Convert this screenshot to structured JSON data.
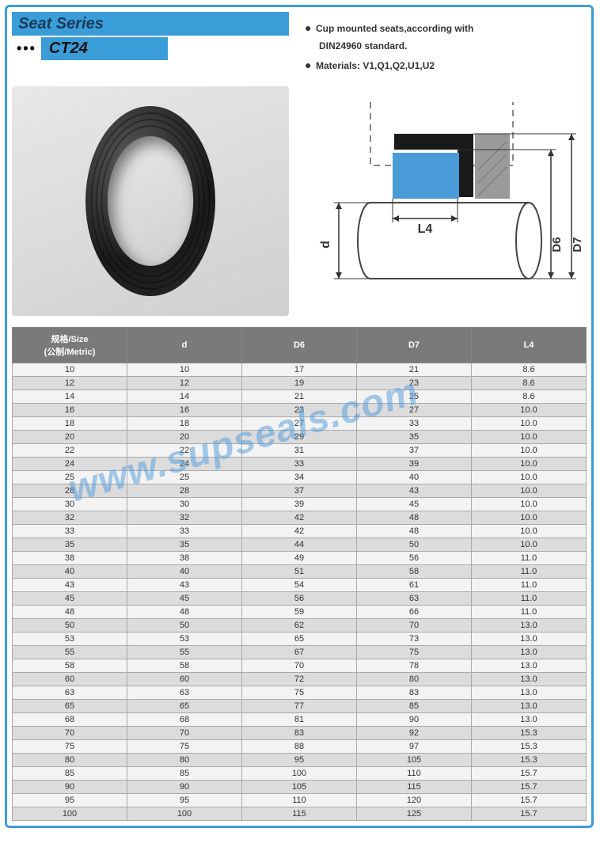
{
  "header": {
    "series_title": "Seat Series",
    "model": "CT24"
  },
  "specs": {
    "bullet1_line1": "Cup mounted seats,according with",
    "bullet1_line2": "DIN24960 standard.",
    "bullet2": "Materials: V1,Q1,Q2,U1,U2"
  },
  "diagram": {
    "L4": "L4",
    "d": "d",
    "D6": "D6",
    "D7": "D7"
  },
  "table": {
    "columns": [
      "规格/Size\n(公制/Metric)",
      "d",
      "D6",
      "D7",
      "L4"
    ],
    "col_headers": {
      "size_line1": "规格/Size",
      "size_line2": "(公制/Metric)",
      "d": "d",
      "D6": "D6",
      "D7": "D7",
      "L4": "L4"
    },
    "rows": [
      [
        "10",
        "10",
        "17",
        "21",
        "8.6"
      ],
      [
        "12",
        "12",
        "19",
        "23",
        "8.6"
      ],
      [
        "14",
        "14",
        "21",
        "25",
        "8.6"
      ],
      [
        "16",
        "16",
        "23",
        "27",
        "10.0"
      ],
      [
        "18",
        "18",
        "27",
        "33",
        "10.0"
      ],
      [
        "20",
        "20",
        "29",
        "35",
        "10.0"
      ],
      [
        "22",
        "22",
        "31",
        "37",
        "10.0"
      ],
      [
        "24",
        "24",
        "33",
        "39",
        "10.0"
      ],
      [
        "25",
        "25",
        "34",
        "40",
        "10.0"
      ],
      [
        "28",
        "28",
        "37",
        "43",
        "10.0"
      ],
      [
        "30",
        "30",
        "39",
        "45",
        "10.0"
      ],
      [
        "32",
        "32",
        "42",
        "48",
        "10.0"
      ],
      [
        "33",
        "33",
        "42",
        "48",
        "10.0"
      ],
      [
        "35",
        "35",
        "44",
        "50",
        "10.0"
      ],
      [
        "38",
        "38",
        "49",
        "56",
        "11.0"
      ],
      [
        "40",
        "40",
        "51",
        "58",
        "11.0"
      ],
      [
        "43",
        "43",
        "54",
        "61",
        "11.0"
      ],
      [
        "45",
        "45",
        "56",
        "63",
        "11.0"
      ],
      [
        "48",
        "48",
        "59",
        "66",
        "11.0"
      ],
      [
        "50",
        "50",
        "62",
        "70",
        "13.0"
      ],
      [
        "53",
        "53",
        "65",
        "73",
        "13.0"
      ],
      [
        "55",
        "55",
        "67",
        "75",
        "13.0"
      ],
      [
        "58",
        "58",
        "70",
        "78",
        "13.0"
      ],
      [
        "60",
        "60",
        "72",
        "80",
        "13.0"
      ],
      [
        "63",
        "63",
        "75",
        "83",
        "13.0"
      ],
      [
        "65",
        "65",
        "77",
        "85",
        "13.0"
      ],
      [
        "68",
        "68",
        "81",
        "90",
        "13.0"
      ],
      [
        "70",
        "70",
        "83",
        "92",
        "15.3"
      ],
      [
        "75",
        "75",
        "88",
        "97",
        "15.3"
      ],
      [
        "80",
        "80",
        "95",
        "105",
        "15.3"
      ],
      [
        "85",
        "85",
        "100",
        "110",
        "15.7"
      ],
      [
        "90",
        "90",
        "105",
        "115",
        "15.7"
      ],
      [
        "95",
        "95",
        "110",
        "120",
        "15.7"
      ],
      [
        "100",
        "100",
        "115",
        "125",
        "15.7"
      ]
    ],
    "row_band_colors": {
      "odd": "#f3f3f3",
      "even": "#dcdcdc"
    },
    "header_bg": "#7a7a7a",
    "header_fg": "#ffffff",
    "border_color": "#aaaaaa",
    "fontsize": 11
  },
  "watermark": "www.supseals.com",
  "frame_color": "#3b9dd8",
  "accent_color": "#3b9dd8",
  "diagram_colors": {
    "housing": "#9a9a9a",
    "seat": "#4a9cd8",
    "ring": "#1a1a1a",
    "dash": "#9a9a9a",
    "shaft_fill": "#ffffff",
    "shaft_stroke": "#444"
  }
}
